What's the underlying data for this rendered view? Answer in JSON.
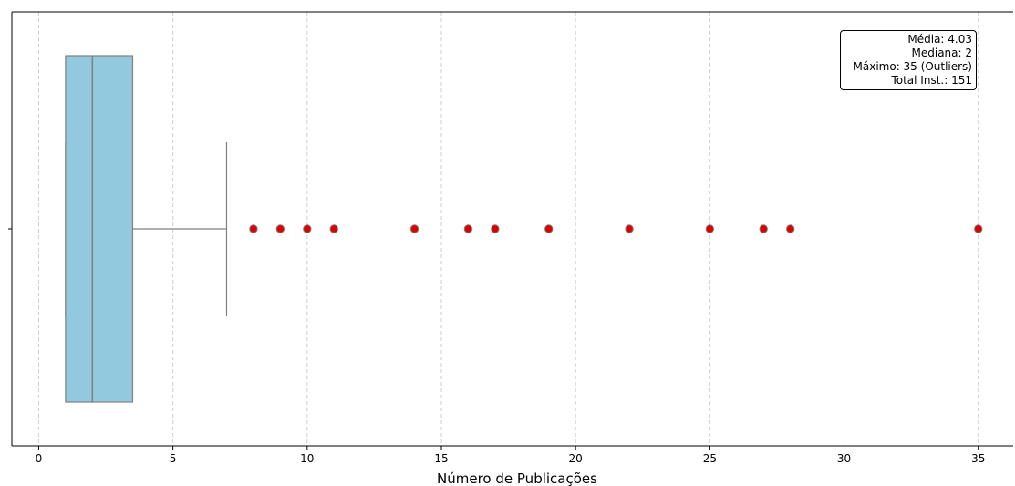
{
  "chart_data": {
    "type": "boxplot",
    "orientation": "horizontal",
    "xlabel": "Número de Publicações",
    "ylabel": "",
    "xlim": [
      -1,
      36.3
    ],
    "xticks": [
      0,
      5,
      10,
      15,
      20,
      25,
      30,
      35
    ],
    "grid": "x, dashed",
    "box": {
      "q1": 1,
      "median": 2,
      "q3": 3.5,
      "whisker_low": 1,
      "whisker_high": 7
    },
    "outliers": [
      8,
      9,
      10,
      11,
      14,
      16,
      17,
      19,
      22,
      25,
      27,
      28,
      35
    ],
    "colors": {
      "box_fill": "#93c9df",
      "box_edge": "#808080",
      "outlier_fill": "#dd0000",
      "outlier_edge": "#808080"
    },
    "annotation": {
      "lines": [
        "Média: 4.03",
        "Mediana: 2",
        "Máximo: 35 (Outliers)",
        "Total Inst.: 151"
      ],
      "placement": "top-right"
    }
  }
}
